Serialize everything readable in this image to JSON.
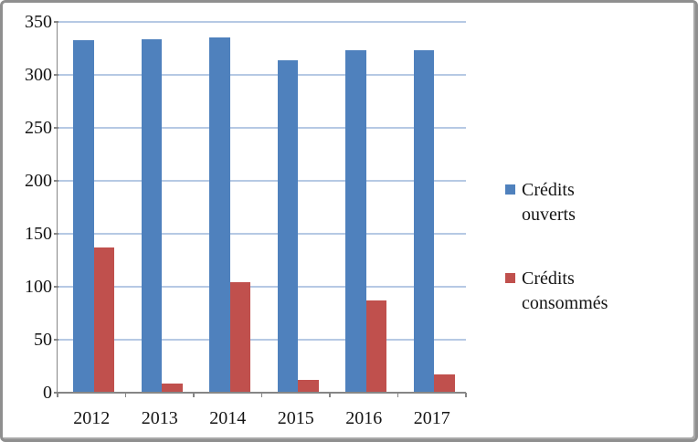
{
  "chart_data": {
    "type": "bar",
    "categories": [
      "2012",
      "2013",
      "2014",
      "2015",
      "2016",
      "2017"
    ],
    "series": [
      {
        "name": "Crédits ouverts",
        "color": "#4F81BD",
        "values": [
          333,
          334,
          335,
          314,
          323,
          323
        ]
      },
      {
        "name": "Crédits consommés",
        "color": "#C0504D",
        "values": [
          137,
          9,
          104,
          12,
          87,
          17
        ]
      }
    ],
    "title": "",
    "xlabel": "",
    "ylabel": "",
    "ylim": [
      0,
      350
    ],
    "ytick_step": 50,
    "yticks": [
      0,
      50,
      100,
      150,
      200,
      250,
      300,
      350
    ],
    "grid": true,
    "legend_position": "right"
  },
  "colors": {
    "bar_blue": "#4F81BD",
    "bar_red": "#C0504D",
    "gridline": "#B6C9E4",
    "axis": "#868686",
    "text": "#151515",
    "frame_border": "#8F8F8F",
    "background": "#FFFFFF"
  }
}
